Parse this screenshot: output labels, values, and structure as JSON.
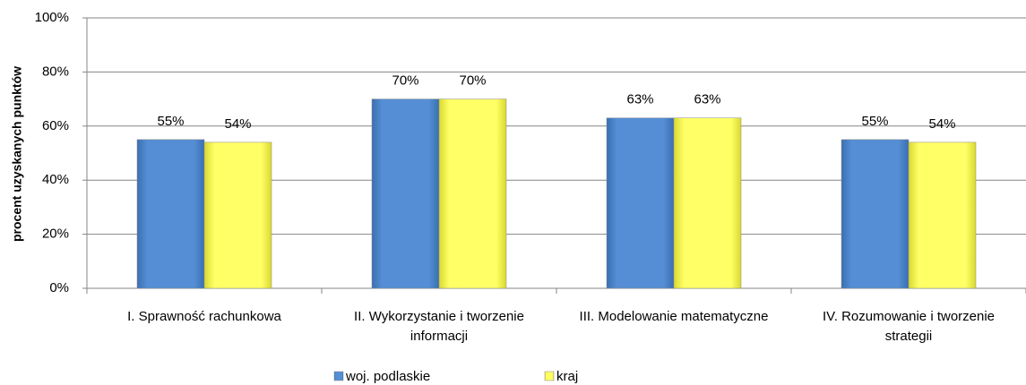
{
  "chart_data": {
    "type": "bar",
    "ylabel": "procent uzyskanych punktów",
    "categories": [
      "I. Sprawność rachunkowa",
      "II. Wykorzystanie i tworzenie informacji",
      "III. Modelowanie matematyczne",
      "IV. Rozumowanie i tworzenie strategii"
    ],
    "series": [
      {
        "name": "woj. podlaskie",
        "color": "#558ed5",
        "values": [
          55,
          70,
          63,
          55
        ],
        "value_labels": [
          "55%",
          "70%",
          "63%",
          "55%"
        ]
      },
      {
        "name": "kraj",
        "color": "#ffff66",
        "values": [
          54,
          70,
          63,
          54
        ],
        "value_labels": [
          "54%",
          "70%",
          "63%",
          "54%"
        ]
      }
    ],
    "ylim": [
      0,
      100
    ],
    "yticks": [
      {
        "value": 0,
        "label": "0%"
      },
      {
        "value": 20,
        "label": "20%"
      },
      {
        "value": 40,
        "label": "40%"
      },
      {
        "value": 60,
        "label": "60%"
      },
      {
        "value": 80,
        "label": "80%"
      },
      {
        "value": 100,
        "label": "100%"
      }
    ],
    "grid": true,
    "legend": "bottom"
  }
}
